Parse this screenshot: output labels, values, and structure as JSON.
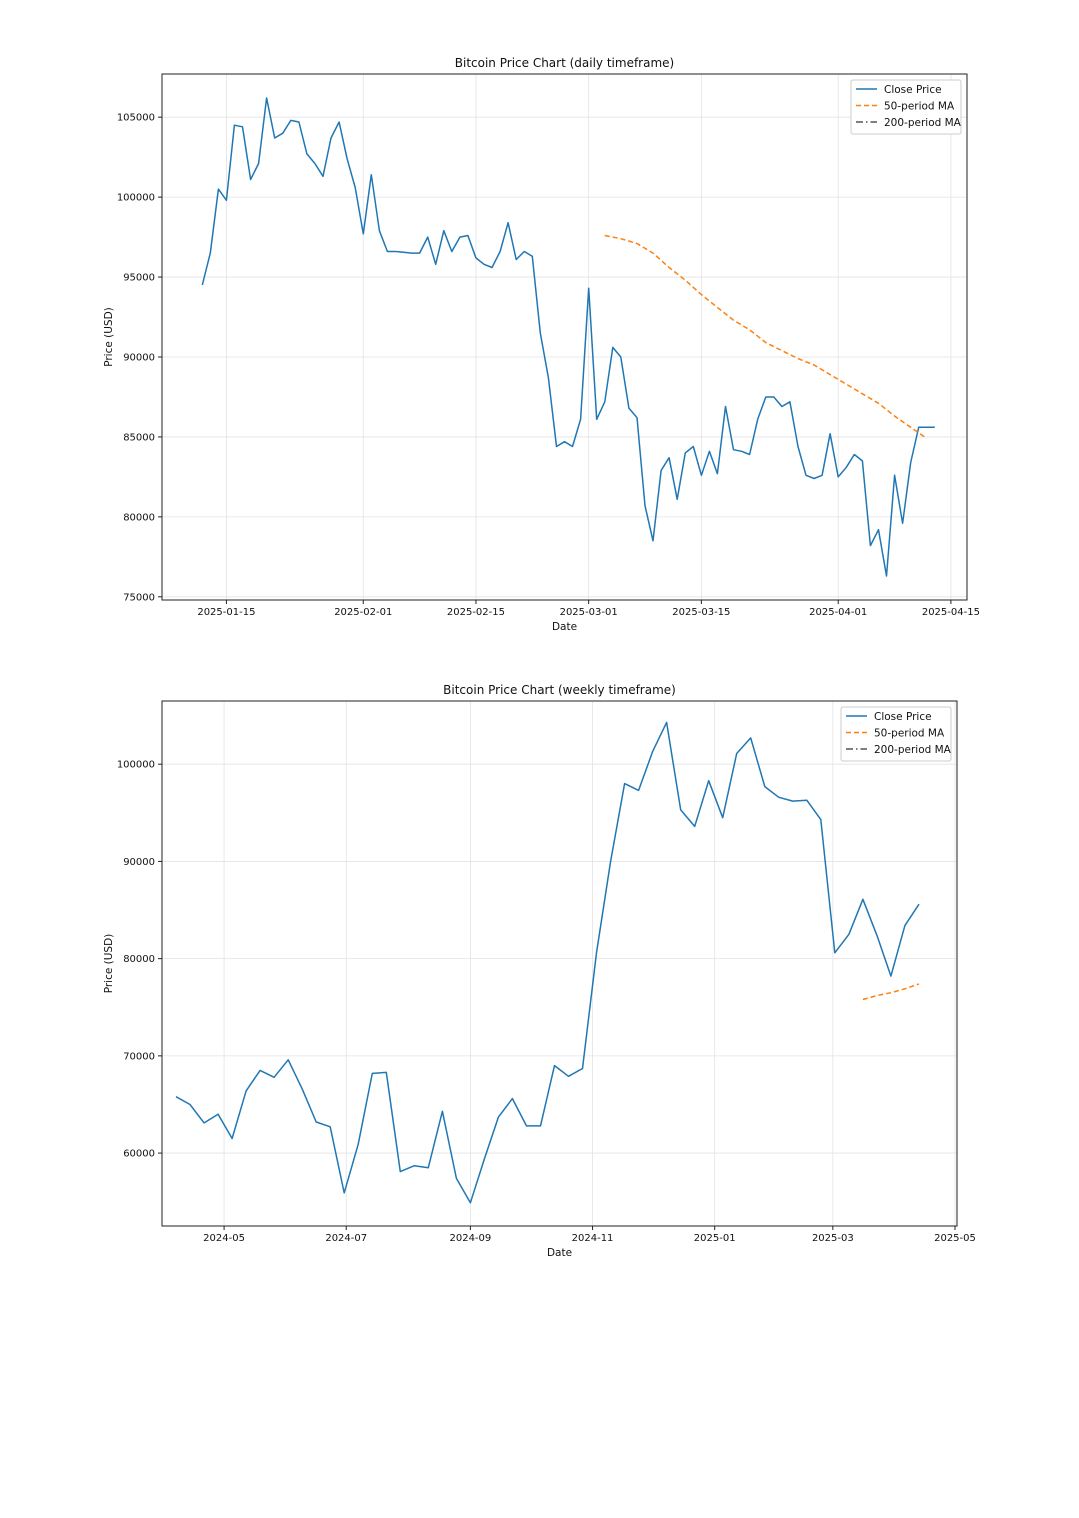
{
  "colors": {
    "close": "#1f77b4",
    "ma50": "#ff7f0e",
    "ma200": "#555555"
  },
  "chart_data": [
    {
      "type": "line",
      "title": "Bitcoin Price Chart (daily timeframe)",
      "xlabel": "Date",
      "ylabel": "Price (USD)",
      "grid": true,
      "legend_position": "top-right",
      "xlim": [
        "2025-01-07",
        "2025-04-17"
      ],
      "ylim": [
        74800,
        107700
      ],
      "x_ticks": [
        "2025-01-15",
        "2025-02-01",
        "2025-02-15",
        "2025-03-01",
        "2025-03-15",
        "2025-04-01",
        "2025-04-15"
      ],
      "y_ticks": [
        75000,
        80000,
        85000,
        90000,
        95000,
        100000,
        105000
      ],
      "y_tick_labels": [
        "75000",
        "80000",
        "85000",
        "90000",
        "95000",
        "100000",
        "105000"
      ],
      "series": [
        {
          "name": "Close Price",
          "style": "solid",
          "x": [
            "2025-01-12",
            "2025-01-13",
            "2025-01-14",
            "2025-01-15",
            "2025-01-16",
            "2025-01-17",
            "2025-01-18",
            "2025-01-19",
            "2025-01-20",
            "2025-01-21",
            "2025-01-22",
            "2025-01-23",
            "2025-01-24",
            "2025-01-25",
            "2025-01-26",
            "2025-01-27",
            "2025-01-28",
            "2025-01-29",
            "2025-01-30",
            "2025-01-31",
            "2025-02-01",
            "2025-02-02",
            "2025-02-03",
            "2025-02-04",
            "2025-02-05",
            "2025-02-06",
            "2025-02-07",
            "2025-02-08",
            "2025-02-09",
            "2025-02-10",
            "2025-02-11",
            "2025-02-12",
            "2025-02-13",
            "2025-02-14",
            "2025-02-15",
            "2025-02-16",
            "2025-02-17",
            "2025-02-18",
            "2025-02-19",
            "2025-02-20",
            "2025-02-21",
            "2025-02-22",
            "2025-02-23",
            "2025-02-24",
            "2025-02-25",
            "2025-02-26",
            "2025-02-27",
            "2025-02-28",
            "2025-03-01",
            "2025-03-02",
            "2025-03-03",
            "2025-03-04",
            "2025-03-05",
            "2025-03-06",
            "2025-03-07",
            "2025-03-08",
            "2025-03-09",
            "2025-03-10",
            "2025-03-11",
            "2025-03-12",
            "2025-03-13",
            "2025-03-14",
            "2025-03-15",
            "2025-03-16",
            "2025-03-17",
            "2025-03-18",
            "2025-03-19",
            "2025-03-20",
            "2025-03-21",
            "2025-03-22",
            "2025-03-23",
            "2025-03-24",
            "2025-03-25",
            "2025-03-26",
            "2025-03-27",
            "2025-03-28",
            "2025-03-29",
            "2025-03-30",
            "2025-03-31",
            "2025-04-01",
            "2025-04-02",
            "2025-04-03",
            "2025-04-04",
            "2025-04-05",
            "2025-04-06",
            "2025-04-07",
            "2025-04-08",
            "2025-04-09",
            "2025-04-10",
            "2025-04-11",
            "2025-04-12",
            "2025-04-13"
          ],
          "values": [
            94500,
            96500,
            100500,
            99800,
            104500,
            104400,
            101100,
            102100,
            106200,
            103700,
            104000,
            104800,
            104700,
            102700,
            102100,
            101300,
            103700,
            104700,
            102400,
            100600,
            97700,
            101400,
            97900,
            96600,
            96600,
            96550,
            96500,
            96500,
            97500,
            95800,
            97900,
            96600,
            97500,
            97600,
            96200,
            95800,
            95600,
            96600,
            98400,
            96100,
            96600,
            96300,
            91500,
            88700,
            84400,
            84700,
            84400,
            86100,
            94300,
            86100,
            87200,
            90600,
            90000,
            86800,
            86200,
            80700,
            78500,
            82900,
            83700,
            81100,
            84000,
            84400,
            82600,
            84100,
            82700,
            86900,
            84200,
            84100,
            83900,
            86100,
            87500,
            87500,
            86900,
            87200,
            84400,
            82600,
            82400,
            82600,
            85200,
            82500,
            83100,
            83900,
            83500,
            78200,
            79200,
            76300,
            82600,
            79600,
            83400,
            85600,
            85600,
            85600
          ]
        },
        {
          "name": "50-period MA",
          "style": "dashed",
          "x": [
            "2025-03-03",
            "2025-03-05",
            "2025-03-07",
            "2025-03-09",
            "2025-03-11",
            "2025-03-13",
            "2025-03-15",
            "2025-03-17",
            "2025-03-19",
            "2025-03-21",
            "2025-03-23",
            "2025-03-25",
            "2025-03-27",
            "2025-03-29",
            "2025-03-31",
            "2025-04-02",
            "2025-04-04",
            "2025-04-06",
            "2025-04-08",
            "2025-04-10",
            "2025-04-12"
          ],
          "values": [
            97600,
            97400,
            97100,
            96500,
            95600,
            94800,
            93900,
            93100,
            92300,
            91700,
            90900,
            90400,
            89900,
            89500,
            88900,
            88300,
            87700,
            87100,
            86300,
            85600,
            84900
          ]
        },
        {
          "name": "200-period MA",
          "style": "dashdot",
          "x": [],
          "values": []
        }
      ]
    },
    {
      "type": "line",
      "title": "Bitcoin Price Chart (weekly timeframe)",
      "xlabel": "Date",
      "ylabel": "Price (USD)",
      "grid": true,
      "legend_position": "top-right",
      "xlim": [
        "2024-03-31",
        "2025-05-02"
      ],
      "ylim": [
        52500,
        106500
      ],
      "x_ticks": [
        "2024-05-01",
        "2024-07-01",
        "2024-09-01",
        "2024-11-01",
        "2025-01-01",
        "2025-03-01",
        "2025-05-01"
      ],
      "x_tick_labels": [
        "2024-05",
        "2024-07",
        "2024-09",
        "2024-11",
        "2025-01",
        "2025-03",
        "2025-05"
      ],
      "y_ticks": [
        60000,
        70000,
        80000,
        90000,
        100000
      ],
      "y_tick_labels": [
        "60000",
        "70000",
        "80000",
        "90000",
        "100000"
      ],
      "series": [
        {
          "name": "Close Price",
          "style": "solid",
          "x": [
            "2024-04-07",
            "2024-04-14",
            "2024-04-21",
            "2024-04-28",
            "2024-05-05",
            "2024-05-12",
            "2024-05-19",
            "2024-05-26",
            "2024-06-02",
            "2024-06-09",
            "2024-06-16",
            "2024-06-23",
            "2024-06-30",
            "2024-07-07",
            "2024-07-14",
            "2024-07-21",
            "2024-07-28",
            "2024-08-04",
            "2024-08-11",
            "2024-08-18",
            "2024-08-25",
            "2024-09-01",
            "2024-09-08",
            "2024-09-15",
            "2024-09-22",
            "2024-09-29",
            "2024-10-06",
            "2024-10-13",
            "2024-10-20",
            "2024-10-27",
            "2024-11-03",
            "2024-11-10",
            "2024-11-17",
            "2024-11-24",
            "2024-12-01",
            "2024-12-08",
            "2024-12-15",
            "2024-12-22",
            "2024-12-29",
            "2025-01-05",
            "2025-01-12",
            "2025-01-19",
            "2025-01-26",
            "2025-02-02",
            "2025-02-09",
            "2025-02-16",
            "2025-02-23",
            "2025-03-02",
            "2025-03-09",
            "2025-03-16",
            "2025-03-23",
            "2025-03-30",
            "2025-04-06",
            "2025-04-13"
          ],
          "values": [
            65800,
            65000,
            63100,
            64000,
            61500,
            66400,
            68500,
            67800,
            69600,
            66600,
            63200,
            62700,
            55900,
            60900,
            68200,
            68300,
            58100,
            58700,
            58500,
            64300,
            57400,
            54900,
            59400,
            63700,
            65600,
            62800,
            62800,
            69000,
            67900,
            68700,
            80600,
            90000,
            98000,
            97300,
            101300,
            104300,
            95300,
            93600,
            98300,
            94500,
            101100,
            102700,
            97700,
            96600,
            96200,
            96300,
            94300,
            80600,
            82500,
            86100,
            82400,
            78200,
            83400,
            85600
          ]
        },
        {
          "name": "50-period MA",
          "style": "dashed",
          "x": [
            "2025-03-16",
            "2025-03-23",
            "2025-03-30",
            "2025-04-06",
            "2025-04-13"
          ],
          "values": [
            75800,
            76200,
            76500,
            76900,
            77400
          ]
        },
        {
          "name": "200-period MA",
          "style": "dashdot",
          "x": [],
          "values": []
        }
      ]
    }
  ]
}
